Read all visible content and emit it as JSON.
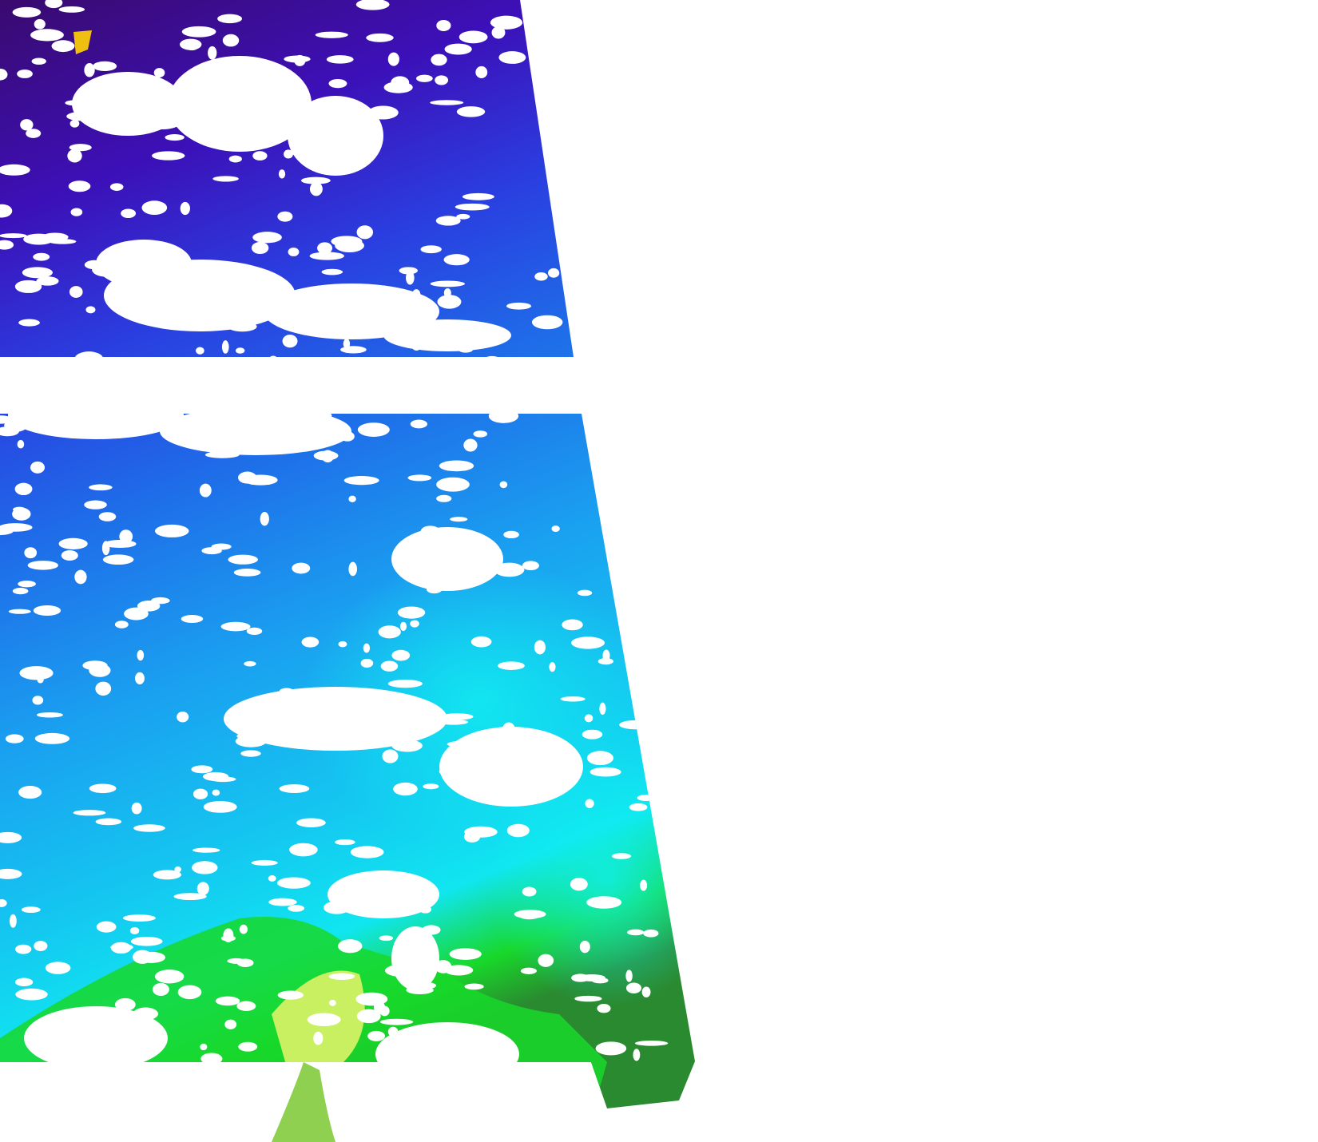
{
  "map": {
    "kind": "satellite-swath",
    "no_data_color": "#ffffff",
    "palette": {
      "deep_purple": "#3a0a6e",
      "violet": "#3c10b8",
      "blue": "#1f5fe8",
      "azure": "#1aa0f0",
      "cyan": "#10e6f0",
      "green": "#18d82a",
      "yellow_green": "#c8f060",
      "dark_green": "#2a8a30",
      "yellow": "#f0c010"
    }
  }
}
